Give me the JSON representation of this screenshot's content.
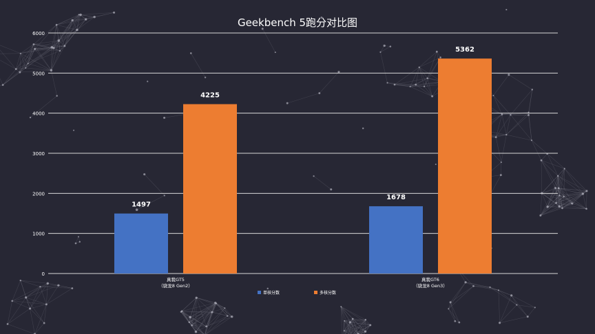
{
  "chart_data": {
    "type": "bar",
    "title": "Geekbench 5跑分对比图",
    "categories": [
      {
        "line1": "真我GT5",
        "line2": "（骁龙8 Gen2）"
      },
      {
        "line1": "真我GT6",
        "line2": "（骁龙8 Gen3）"
      }
    ],
    "series": [
      {
        "name": "单核分数",
        "color": "#4472C4",
        "values": [
          1497,
          1678
        ]
      },
      {
        "name": "多核分数",
        "color": "#ED7D31",
        "values": [
          4225,
          5362
        ]
      }
    ],
    "y_ticks": [
      "0",
      "1000",
      "2000",
      "3000",
      "4000",
      "5000",
      "6000"
    ],
    "ylim": [
      0,
      6000
    ],
    "grid": true,
    "legend_position": "bottom"
  }
}
